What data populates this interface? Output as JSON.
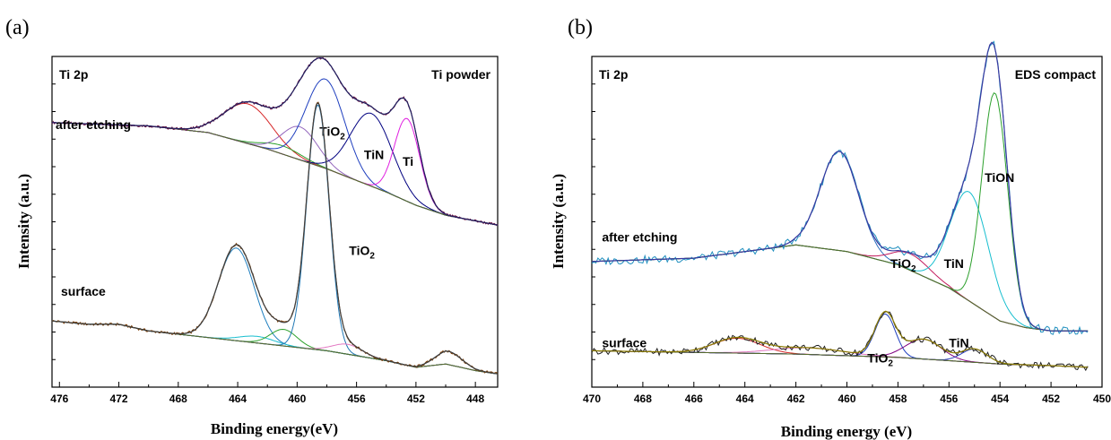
{
  "chart_data": [
    {
      "type": "line",
      "panel_label": "(a)",
      "title": "",
      "xlabel": "Binding energy(eV)",
      "ylabel": "Intensity (a.u.)",
      "xlim": [
        476.5,
        446.5
      ],
      "x_reversed": true,
      "xticks": [
        476,
        472,
        468,
        464,
        460,
        456,
        452,
        448
      ],
      "xtick_labels": [
        "476",
        "472",
        "468",
        "464",
        "460",
        "456",
        "452",
        "448"
      ],
      "yticks_labeled": false,
      "annotations": {
        "region": "Ti 2p",
        "sample": "Ti powder"
      },
      "traces": [
        {
          "name": "after etching",
          "baseline": {
            "x": [
              476.5,
              470,
              466,
              462,
              458,
              454,
              452,
              450,
              446.5
            ],
            "y": [
              0.8,
              0.79,
              0.77,
              0.72,
              0.66,
              0.59,
              0.55,
              0.52,
              0.49
            ]
          },
          "components": [
            {
              "label": "",
              "color": "#d62728",
              "center": 463.3,
              "width": 1.6,
              "height": 0.12
            },
            {
              "label": "",
              "color": "#2ca02c",
              "center": 461.0,
              "width": 1.3,
              "height": 0.025
            },
            {
              "label": "",
              "color": "#9467bd",
              "center": 459.8,
              "width": 1.2,
              "height": 0.1
            },
            {
              "label": "TiO2",
              "color": "#1f3fbf",
              "center": 458.1,
              "width": 1.3,
              "height": 0.27
            },
            {
              "label": "TiN",
              "color": "#000080",
              "center": 455.0,
              "width": 1.4,
              "height": 0.22
            },
            {
              "label": "Ti",
              "color": "#e020e0",
              "center": 452.6,
              "width": 0.85,
              "height": 0.25
            }
          ],
          "labels": [
            {
              "text": "TiO",
              "sub": "2",
              "x": 458.5,
              "y": 0.76
            },
            {
              "text": "TiN",
              "x": 455.5,
              "y": 0.69
            },
            {
              "text": "Ti",
              "x": 452.9,
              "y": 0.67
            }
          ]
        },
        {
          "name": "surface",
          "baseline": {
            "x": [
              476.5,
              474,
              472,
              470,
              466,
              462,
              458,
              454,
              452,
              450,
              448,
              446.5
            ],
            "y": [
              0.2,
              0.19,
              0.19,
              0.17,
              0.15,
              0.13,
              0.11,
              0.08,
              0.06,
              0.07,
              0.05,
              0.04
            ]
          },
          "components": [
            {
              "label": "",
              "color": "#1f7fbf",
              "center": 464.1,
              "width": 1.2,
              "height": 0.28
            },
            {
              "label": "",
              "color": "#17becf",
              "center": 462.7,
              "width": 1.2,
              "height": 0.02
            },
            {
              "label": "",
              "color": "#2ca02c",
              "center": 460.9,
              "width": 0.9,
              "height": 0.05
            },
            {
              "label": "TiO2",
              "color": "#1f77b4",
              "center": 458.6,
              "width": 0.75,
              "height": 0.74
            },
            {
              "label": "",
              "color": "#e377c2",
              "center": 456.6,
              "width": 1.0,
              "height": 0.03
            },
            {
              "label": "",
              "color": "#1f77b4",
              "center": 449.8,
              "width": 0.9,
              "height": 0.04
            }
          ],
          "labels": [
            {
              "text": "TiO",
              "sub": "2",
              "x": 456.5,
              "y": 0.4
            }
          ]
        }
      ]
    },
    {
      "type": "line",
      "panel_label": "(b)",
      "title": "",
      "xlabel": "Binding energy (eV)",
      "ylabel": "Intensity (a.u.)",
      "xlim": [
        470,
        450
      ],
      "x_reversed": true,
      "xticks": [
        470,
        468,
        466,
        464,
        462,
        460,
        458,
        456,
        454,
        452,
        450
      ],
      "xtick_labels": [
        "470",
        "468",
        "466",
        "464",
        "462",
        "460",
        "458",
        "456",
        "454",
        "452",
        "450"
      ],
      "yticks_labeled": false,
      "annotations": {
        "region": "Ti 2p",
        "sample": "EDS compact"
      },
      "traces": [
        {
          "name": "after etching",
          "baseline": {
            "x": [
              470,
              466,
              464,
              462,
              460,
              458,
              456,
              455,
              454,
              453,
              452,
              450
            ],
            "y": [
              0.38,
              0.39,
              0.41,
              0.43,
              0.41,
              0.37,
              0.3,
              0.25,
              0.2,
              0.18,
              0.17,
              0.17
            ]
          },
          "components": [
            {
              "label": "",
              "color": "#2c6fbf",
              "center": 460.3,
              "width": 0.75,
              "height": 0.3
            },
            {
              "label": "TiO2",
              "color": "#c2185b",
              "center": 457.5,
              "width": 0.75,
              "height": 0.05
            },
            {
              "label": "TiN",
              "color": "#17becf",
              "center": 455.2,
              "width": 0.75,
              "height": 0.33
            },
            {
              "label": "TiON",
              "color": "#2ca02c",
              "center": 454.2,
              "width": 0.5,
              "height": 0.68
            }
          ],
          "labels": [
            {
              "text": "after etching",
              "x": 469.6,
              "y": 0.44
            },
            {
              "text": "TiO",
              "sub": "2",
              "x": 458.3,
              "y": 0.36
            },
            {
              "text": "TiN",
              "x": 456.2,
              "y": 0.36
            },
            {
              "text": "TiON",
              "x": 454.6,
              "y": 0.62
            }
          ]
        },
        {
          "name": "surface",
          "baseline": {
            "x": [
              470,
              466,
              462,
              458,
              456,
              454,
              452,
              450.5
            ],
            "y": [
              0.11,
              0.105,
              0.1,
              0.09,
              0.08,
              0.07,
              0.065,
              0.06
            ]
          },
          "components": [
            {
              "label": "",
              "color": "#d62728",
              "center": 464.3,
              "width": 0.9,
              "height": 0.045
            },
            {
              "label": "",
              "color": "#e377c2",
              "center": 461.5,
              "width": 1.4,
              "height": 0.02
            },
            {
              "label": "TiO2",
              "color": "#1f3fbf",
              "center": 458.5,
              "width": 0.4,
              "height": 0.13
            },
            {
              "label": "",
              "color": "#800080",
              "center": 457.0,
              "width": 0.7,
              "height": 0.06
            },
            {
              "label": "TiN",
              "color": "#2c3fbf",
              "center": 455.0,
              "width": 0.5,
              "height": 0.04
            }
          ],
          "labels": [
            {
              "text": "surface",
              "x": 469.6,
              "y": 0.12
            },
            {
              "text": "TiO",
              "sub": "2",
              "x": 459.2,
              "y": 0.075
            },
            {
              "text": "TiN",
              "x": 456.0,
              "y": 0.12
            }
          ]
        }
      ]
    }
  ],
  "trace_labels_a": {
    "after": "after etching",
    "surface": "surface"
  }
}
